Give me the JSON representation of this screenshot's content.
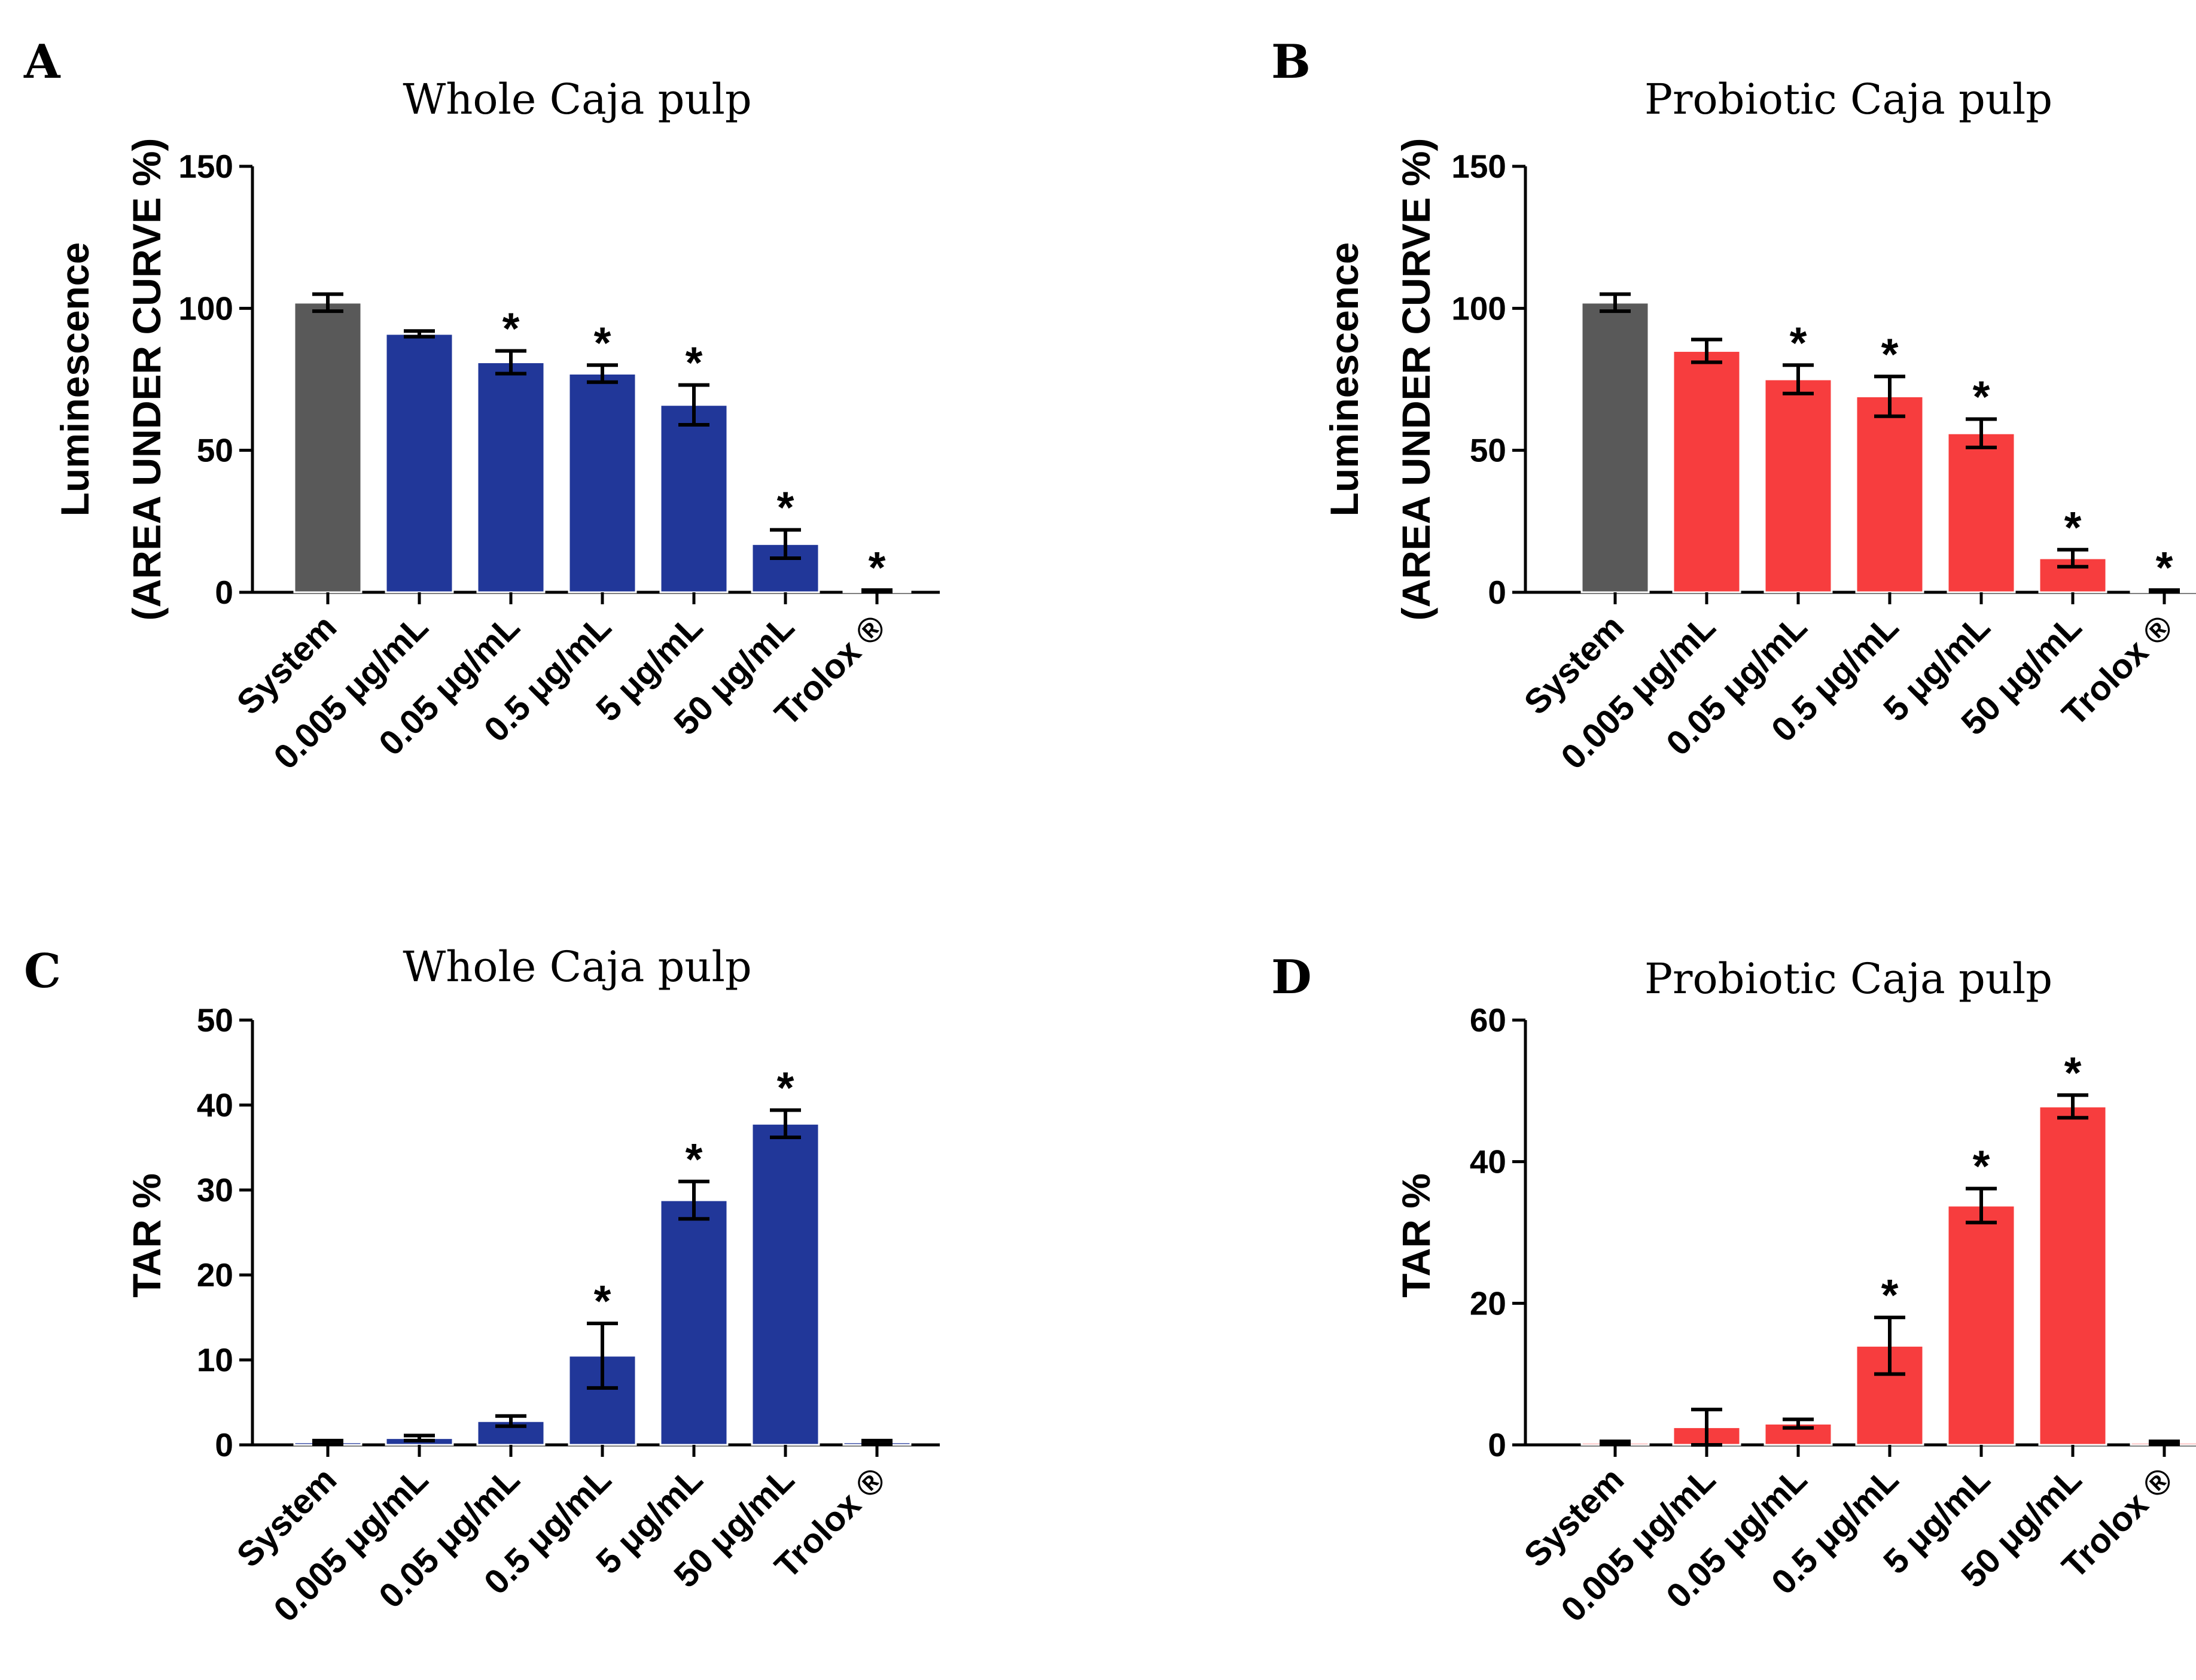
{
  "colors": {
    "system": "#595959",
    "blue": "#213799",
    "red": "#f73d3e",
    "axis": "#000000",
    "errorbar": "#000000"
  },
  "chart_data": [
    {
      "panel": "A",
      "type": "bar",
      "title": "Whole Caja pulp",
      "ylabel_lines": [
        "Luminescence",
        "(AREA UNDER CURVE %)"
      ],
      "xlabel": "",
      "categories": [
        "System",
        "0.005 μg/mL",
        "0.05 μg/mL",
        "0.5 μg/mL",
        "5 μg/mL",
        "50 μg/mL",
        "Trolox ®"
      ],
      "values": [
        102,
        91,
        81,
        77,
        66,
        17,
        0.5
      ],
      "errors": [
        3,
        1,
        4,
        3,
        7,
        5,
        0.3
      ],
      "significance": [
        "",
        "",
        "*",
        "*",
        "*",
        "*",
        "*"
      ],
      "ylim": [
        0,
        150
      ],
      "yticks": [
        0,
        50,
        100,
        150
      ],
      "bar_colors": [
        "system",
        "blue",
        "blue",
        "blue",
        "blue",
        "blue",
        "blue"
      ]
    },
    {
      "panel": "B",
      "type": "bar",
      "title": "Probiotic Caja pulp",
      "ylabel_lines": [
        "Luminescence",
        "(AREA UNDER CURVE %)"
      ],
      "xlabel": "",
      "categories": [
        "System",
        "0.005 μg/mL",
        "0.05 μg/mL",
        "0.5 μg/mL",
        "5 μg/mL",
        "50 μg/mL",
        "Trolox ®"
      ],
      "values": [
        102,
        85,
        75,
        69,
        56,
        12,
        0.5
      ],
      "errors": [
        3,
        4,
        5,
        7,
        5,
        3,
        0.3
      ],
      "significance": [
        "",
        "",
        "*",
        "*",
        "*",
        "*",
        "*"
      ],
      "ylim": [
        0,
        150
      ],
      "yticks": [
        0,
        50,
        100,
        150
      ],
      "bar_colors": [
        "system",
        "red",
        "red",
        "red",
        "red",
        "red",
        "red"
      ]
    },
    {
      "panel": "C",
      "type": "bar",
      "title": "Whole Caja pulp",
      "ylabel_lines": [
        "TAR %"
      ],
      "xlabel": "",
      "categories": [
        "System",
        "0.005 μg/mL",
        "0.05 μg/mL",
        "0.5 μg/mL",
        "5 μg/mL",
        "50 μg/mL",
        "Trolox ®"
      ],
      "values": [
        0.3,
        0.8,
        2.8,
        10.5,
        28.8,
        37.8,
        0.3
      ],
      "errors": [
        0.2,
        0.3,
        0.6,
        3.8,
        2.2,
        1.6,
        0.2
      ],
      "significance": [
        "",
        "",
        "",
        "*",
        "*",
        "*",
        ""
      ],
      "ylim": [
        0,
        50
      ],
      "yticks": [
        0,
        10,
        20,
        30,
        40,
        50
      ],
      "bar_colors": [
        "blue",
        "blue",
        "blue",
        "blue",
        "blue",
        "blue",
        "blue"
      ]
    },
    {
      "panel": "D",
      "type": "bar",
      "title": "Probiotic Caja pulp",
      "ylabel_lines": [
        "TAR %"
      ],
      "xlabel": "",
      "categories": [
        "System",
        "0.005 μg/mL",
        "0.05 μg/mL",
        "0.5 μg/mL",
        "5 μg/mL",
        "50 μg/mL",
        "Trolox ®"
      ],
      "values": [
        0.3,
        2.5,
        3.0,
        14.0,
        33.8,
        47.8,
        0.3
      ],
      "errors": [
        0.2,
        2.5,
        0.6,
        4.0,
        2.4,
        1.6,
        0.2
      ],
      "significance": [
        "",
        "",
        "",
        "*",
        "*",
        "*",
        ""
      ],
      "ylim": [
        0,
        60
      ],
      "yticks": [
        0,
        20,
        40,
        60
      ],
      "bar_colors": [
        "red",
        "red",
        "red",
        "red",
        "red",
        "red",
        "red"
      ]
    }
  ]
}
